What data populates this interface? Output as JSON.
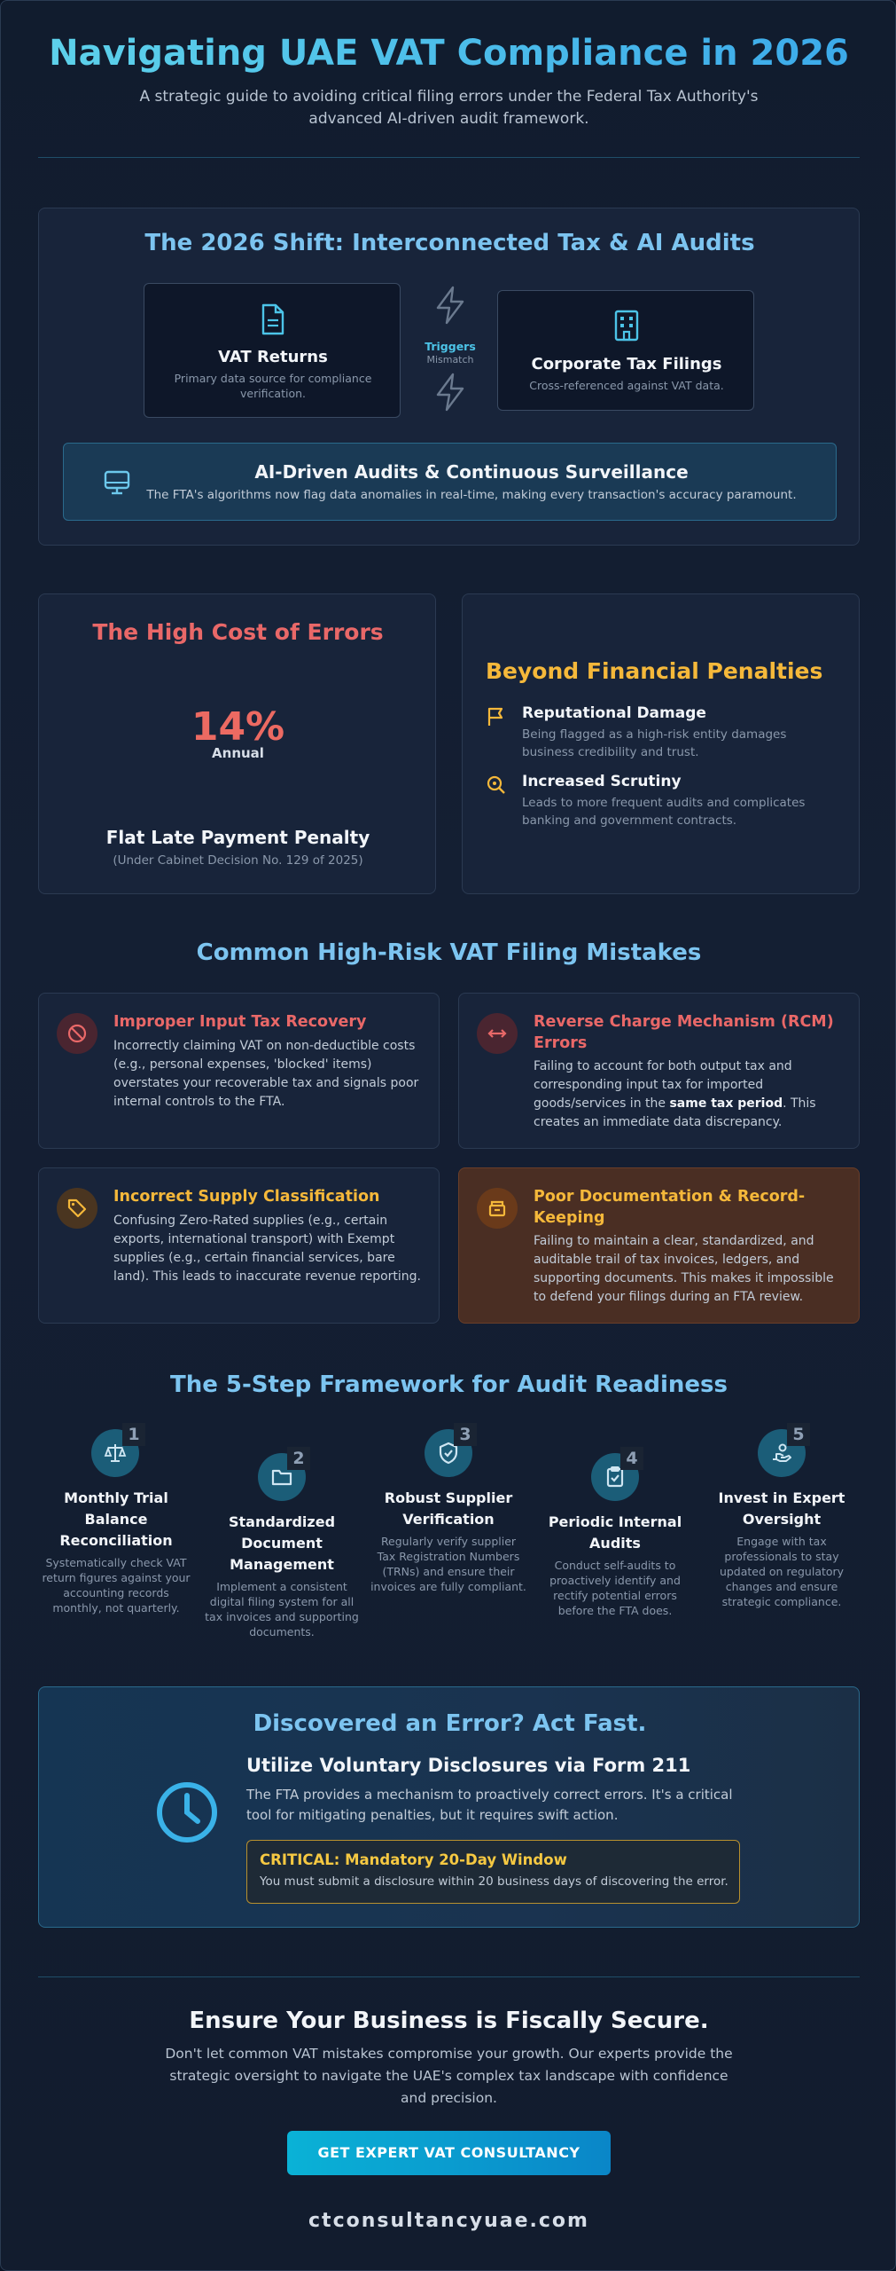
{
  "header": {
    "title": "Navigating UAE VAT Compliance in 2026",
    "subtitle": "A strategic guide to avoiding critical filing errors under the Federal Tax Authority's advanced AI-driven audit framework."
  },
  "shift": {
    "title": "The 2026 Shift: Interconnected Tax & AI Audits",
    "vat_box": {
      "title": "VAT Returns",
      "sub": "Primary data source for compliance verification."
    },
    "trigger": {
      "label": "Triggers",
      "sub": "Mismatch"
    },
    "ct_box": {
      "title": "Corporate Tax Filings",
      "sub": "Cross-referenced against VAT data."
    },
    "ai_banner": {
      "title": "AI-Driven Audits & Continuous Surveillance",
      "sub": "The FTA's algorithms now flag data anomalies in real-time, making every transaction's accuracy paramount."
    }
  },
  "cost": {
    "title": "The High Cost of Errors",
    "rate": "14%",
    "rate_label": "Annual",
    "penalty_title": "Flat Late Payment Penalty",
    "penalty_sub": "(Under Cabinet Decision No. 129 of 2025)"
  },
  "beyond": {
    "title": "Beyond Financial Penalties",
    "items": [
      {
        "title": "Reputational Damage",
        "body": "Being flagged as a high-risk entity damages business credibility and trust."
      },
      {
        "title": "Increased Scrutiny",
        "body": "Leads to more frequent audits and complicates banking and government contracts."
      }
    ]
  },
  "mistakes": {
    "title": "Common High-Risk VAT Filing Mistakes",
    "items": [
      {
        "title": "Improper Input Tax Recovery",
        "body": "Incorrectly claiming VAT on non-deductible costs (e.g., personal expenses, 'blocked' items) overstates your recoverable tax and signals poor internal controls to the FTA."
      },
      {
        "title": "Reverse Charge Mechanism (RCM) Errors",
        "body_before": "Failing to account for both output tax and corresponding input tax for imported goods/services in the ",
        "body_bold": "same tax period",
        "body_after": ". This creates an immediate data discrepancy."
      },
      {
        "title": "Incorrect Supply Classification",
        "body": "Confusing Zero-Rated supplies (e.g., certain exports, international transport) with Exempt supplies (e.g., certain financial services, bare land). This leads to inaccurate revenue reporting."
      },
      {
        "title": "Poor Documentation & Record-Keeping",
        "body": "Failing to maintain a clear, standardized, and auditable trail of tax invoices, ledgers, and supporting documents. This makes it impossible to defend your filings during an FTA review."
      }
    ]
  },
  "framework": {
    "title": "The 5-Step Framework for Audit Readiness",
    "steps": [
      {
        "num": "1",
        "title": "Monthly Trial Balance Reconciliation",
        "body": "Systematically check VAT return figures against your accounting records monthly, not quarterly."
      },
      {
        "num": "2",
        "title": "Standardized Document Management",
        "body": "Implement a consistent digital filing system for all tax invoices and supporting documents."
      },
      {
        "num": "3",
        "title": "Robust Supplier Verification",
        "body": "Regularly verify supplier Tax Registration Numbers (TRNs) and ensure their invoices are fully compliant."
      },
      {
        "num": "4",
        "title": "Periodic Internal Audits",
        "body": "Conduct self-audits to proactively identify and rectify potential errors before the FTA does."
      },
      {
        "num": "5",
        "title": "Invest in Expert Oversight",
        "body": "Engage with tax professionals to stay updated on regulatory changes and ensure strategic compliance."
      }
    ]
  },
  "disclosure": {
    "title": "Discovered an Error? Act Fast.",
    "subtitle": "Utilize Voluntary Disclosures via Form 211",
    "body": "The FTA provides a mechanism to proactively correct errors. It's a critical tool for mitigating penalties, but it requires swift action.",
    "critical_title": "CRITICAL: Mandatory 20-Day Window",
    "critical_body": "You must submit a disclosure within 20 business days of discovering the error."
  },
  "cta": {
    "title": "Ensure Your Business is Fiscally Secure.",
    "body": "Don't let common VAT mistakes compromise your growth. Our experts provide the strategic oversight to navigate the UAE's complex tax landscape with confidence and precision.",
    "button": "GET EXPERT VAT CONSULTANCY",
    "site": "ctconsultancyuae.com"
  },
  "colors": {
    "accent_blue": "#7cc4f0",
    "red": "#e96868",
    "amber": "#f5b83a",
    "button": "#0aa6d0"
  },
  "icons": [
    "document-icon",
    "lightning-icon",
    "building-icon",
    "monitor-icon",
    "flag-icon",
    "search-icon",
    "ban-icon",
    "arrows-icon",
    "tag-icon",
    "archive-icon",
    "scale-icon",
    "folder-icon",
    "shield-check-icon",
    "clipboard-check-icon",
    "hand-coin-icon",
    "clock-icon"
  ]
}
